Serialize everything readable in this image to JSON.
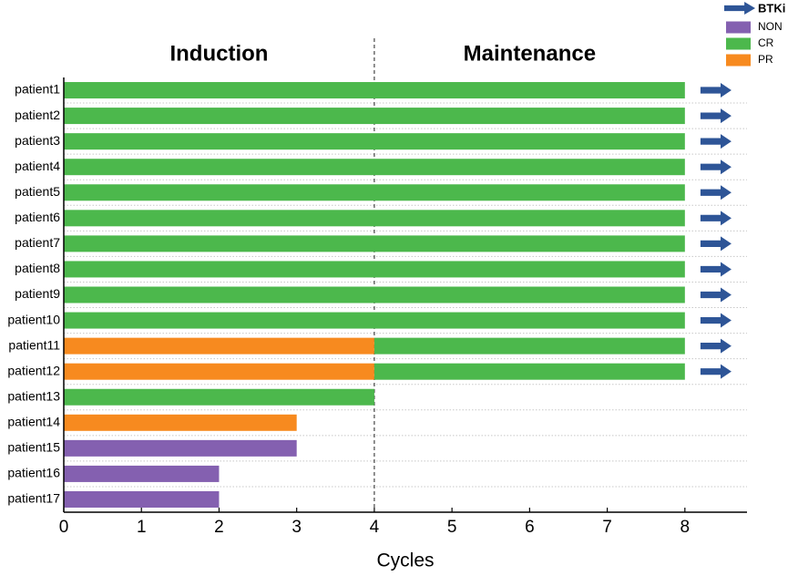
{
  "chart_data": {
    "type": "swimmer",
    "xlabel": "Cycles",
    "categories": [
      "patient1",
      "patient2",
      "patient3",
      "patient4",
      "patient5",
      "patient6",
      "patient7",
      "patient8",
      "patient9",
      "patient10",
      "patient11",
      "patient12",
      "patient13",
      "patient14",
      "patient15",
      "patient16",
      "patient17"
    ],
    "series": [
      {
        "name": "NON",
        "color": "#8460b0",
        "values": [
          null,
          null,
          null,
          null,
          null,
          null,
          null,
          null,
          null,
          null,
          null,
          null,
          null,
          null,
          3,
          2,
          2
        ]
      },
      {
        "name": "CR",
        "color": "#4cb84c",
        "values": [
          8,
          8,
          8,
          8,
          8,
          8,
          8,
          8,
          8,
          8,
          4,
          4,
          4,
          null,
          null,
          null,
          null
        ]
      },
      {
        "name": "PR",
        "color": "#f78a1f",
        "values": [
          null,
          null,
          null,
          null,
          null,
          null,
          null,
          null,
          null,
          null,
          4,
          4,
          null,
          3,
          null,
          null,
          null
        ]
      }
    ],
    "arrows": {
      "name": "BTKi",
      "color": "#2e5597",
      "values": [
        8.4,
        8.4,
        8.4,
        8.4,
        8.4,
        8.4,
        8.4,
        8.4,
        8.4,
        8.4,
        8.4,
        8.4,
        null,
        null,
        null,
        null,
        null
      ]
    },
    "phases": [
      {
        "label": "Induction",
        "start": 0,
        "end": 4
      },
      {
        "label": "Maintenance",
        "start": 4,
        "end": 8
      }
    ],
    "xlim": [
      0,
      8.8
    ],
    "xticks": [
      0,
      1,
      2,
      3,
      4,
      5,
      6,
      7,
      8
    ]
  }
}
